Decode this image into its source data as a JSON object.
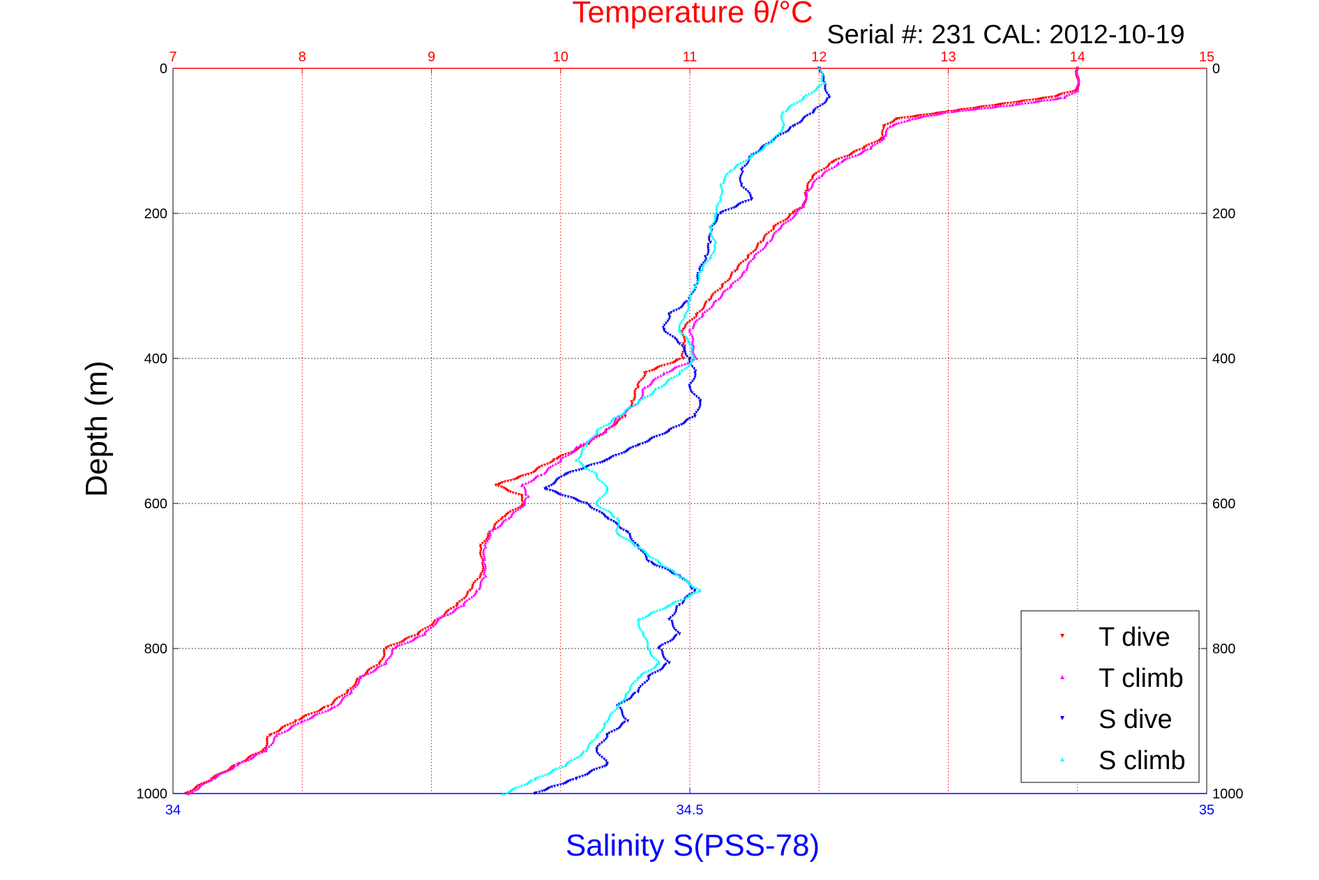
{
  "chart_data": {
    "type": "scatter",
    "title": "Temperature θ/°C",
    "subtitle": "Serial #: 231  CAL: 2012-10-19",
    "xlabel": "Salinity S(PSS-78)",
    "ylabel": "Depth (m)",
    "x_top": {
      "label": "Temperature θ/°C",
      "lim": [
        7,
        15
      ],
      "ticks": [
        "7",
        "8",
        "9",
        "10",
        "11",
        "12",
        "13",
        "14",
        "15"
      ]
    },
    "x_bottom": {
      "label": "Salinity S(PSS-78)",
      "lim": [
        34,
        35
      ],
      "ticks": [
        "34",
        "34.5",
        "35"
      ]
    },
    "y": {
      "label": "Depth (m)",
      "lim": [
        0,
        1000
      ],
      "reversed": true,
      "ticks": [
        "0",
        "200",
        "400",
        "600",
        "800",
        "1000"
      ]
    },
    "grid": true,
    "legend_position": "bottom-right",
    "colors": {
      "temp_axis": "#ff0000",
      "sal_axis": "#0000ff",
      "T_dive": "#ff0000",
      "T_climb": "#ff00ff",
      "S_dive": "#0000ee",
      "S_climb": "#00ffff"
    },
    "series": [
      {
        "name": "T dive",
        "axis": "temperature",
        "marker": "triangle-down",
        "depth": [
          0,
          30,
          40,
          50,
          60,
          70,
          80,
          95,
          110,
          130,
          150,
          170,
          190,
          200,
          220,
          240,
          260,
          280,
          300,
          320,
          340,
          360,
          380,
          400,
          420,
          440,
          460,
          480,
          500,
          520,
          540,
          560,
          575,
          590,
          600,
          620,
          640,
          660,
          680,
          700,
          720,
          740,
          760,
          780,
          800,
          820,
          840,
          860,
          880,
          900,
          920,
          940,
          960,
          980,
          1000
        ],
        "values": [
          14.0,
          14.0,
          13.8,
          13.4,
          13.0,
          12.6,
          12.5,
          12.5,
          12.35,
          12.1,
          11.95,
          11.9,
          11.88,
          11.8,
          11.65,
          11.55,
          11.45,
          11.35,
          11.25,
          11.15,
          11.05,
          10.95,
          10.95,
          10.95,
          10.65,
          10.6,
          10.55,
          10.5,
          10.35,
          10.2,
          9.95,
          9.75,
          9.5,
          9.7,
          9.72,
          9.55,
          9.45,
          9.38,
          9.4,
          9.38,
          9.3,
          9.2,
          9.05,
          8.9,
          8.65,
          8.6,
          8.45,
          8.35,
          8.2,
          7.95,
          7.75,
          7.7,
          7.5,
          7.3,
          7.1
        ]
      },
      {
        "name": "T climb",
        "axis": "temperature",
        "marker": "triangle-up",
        "depth": [
          0,
          30,
          40,
          50,
          60,
          70,
          80,
          95,
          110,
          130,
          150,
          170,
          190,
          200,
          220,
          240,
          260,
          280,
          300,
          320,
          340,
          360,
          380,
          400,
          420,
          440,
          460,
          480,
          500,
          520,
          540,
          560,
          575,
          590,
          600,
          620,
          640,
          660,
          680,
          700,
          720,
          740,
          760,
          780,
          800,
          820,
          840,
          860,
          880,
          900,
          920,
          940,
          960,
          980,
          1000
        ],
        "values": [
          14.0,
          14.0,
          13.9,
          13.5,
          13.0,
          12.7,
          12.55,
          12.5,
          12.4,
          12.15,
          12.0,
          11.9,
          11.88,
          11.82,
          11.7,
          11.6,
          11.5,
          11.42,
          11.32,
          11.2,
          11.1,
          11.0,
          11.02,
          11.05,
          10.8,
          10.65,
          10.6,
          10.45,
          10.35,
          10.15,
          10.0,
          9.85,
          9.7,
          9.75,
          9.72,
          9.6,
          9.45,
          9.42,
          9.4,
          9.42,
          9.35,
          9.25,
          9.05,
          8.95,
          8.7,
          8.65,
          8.45,
          8.38,
          8.25,
          8.0,
          7.8,
          7.72,
          7.5,
          7.3,
          7.12
        ]
      },
      {
        "name": "S dive",
        "axis": "salinity",
        "marker": "triangle-down",
        "depth": [
          0,
          20,
          40,
          60,
          80,
          100,
          120,
          140,
          160,
          180,
          200,
          220,
          240,
          260,
          280,
          300,
          320,
          340,
          360,
          380,
          400,
          420,
          440,
          460,
          480,
          500,
          520,
          540,
          560,
          580,
          600,
          620,
          640,
          660,
          680,
          700,
          720,
          740,
          760,
          780,
          800,
          820,
          840,
          860,
          880,
          900,
          920,
          940,
          960,
          980,
          1000
        ],
        "values": [
          34.625,
          34.63,
          34.635,
          34.62,
          34.6,
          34.58,
          34.56,
          34.55,
          34.55,
          34.56,
          34.53,
          34.52,
          34.52,
          34.515,
          34.51,
          34.505,
          34.5,
          34.48,
          34.475,
          34.49,
          34.5,
          34.505,
          34.5,
          34.51,
          34.505,
          34.48,
          34.45,
          34.42,
          34.38,
          34.36,
          34.4,
          34.42,
          34.44,
          34.45,
          34.46,
          34.49,
          34.505,
          34.49,
          34.48,
          34.49,
          34.47,
          34.48,
          34.46,
          34.45,
          34.43,
          34.44,
          34.42,
          34.41,
          34.42,
          34.39,
          34.35
        ]
      },
      {
        "name": "S climb",
        "axis": "salinity",
        "marker": "triangle-up",
        "depth": [
          0,
          20,
          40,
          60,
          80,
          100,
          120,
          140,
          160,
          180,
          200,
          220,
          240,
          260,
          280,
          300,
          320,
          340,
          360,
          380,
          400,
          420,
          440,
          460,
          480,
          500,
          520,
          540,
          560,
          580,
          600,
          620,
          640,
          660,
          680,
          700,
          720,
          740,
          760,
          780,
          800,
          820,
          840,
          860,
          880,
          900,
          920,
          940,
          960,
          980,
          1000
        ],
        "values": [
          34.625,
          34.63,
          34.61,
          34.59,
          34.59,
          34.58,
          34.56,
          34.54,
          34.53,
          34.53,
          34.525,
          34.52,
          34.525,
          34.52,
          34.51,
          34.505,
          34.5,
          34.495,
          34.49,
          34.5,
          34.505,
          34.49,
          34.47,
          34.45,
          34.43,
          34.41,
          34.4,
          34.39,
          34.41,
          34.42,
          34.41,
          34.43,
          34.43,
          34.45,
          34.47,
          34.49,
          34.51,
          34.48,
          34.45,
          34.455,
          34.46,
          34.47,
          34.45,
          34.44,
          34.43,
          34.42,
          34.41,
          34.4,
          34.38,
          34.35,
          34.32
        ]
      }
    ]
  }
}
